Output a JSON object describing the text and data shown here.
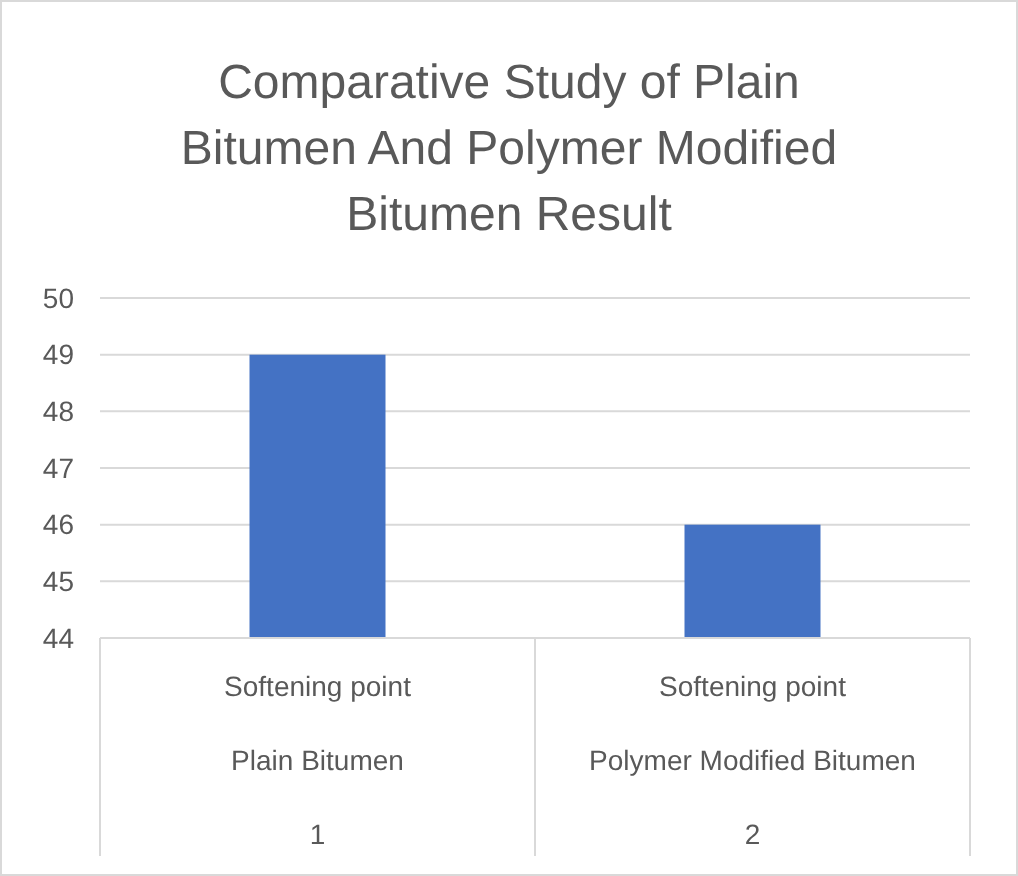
{
  "chart_data": {
    "type": "bar",
    "title": "Comparative Study of Plain Bitumen And Polymer Modified Bitumen Result",
    "categories": [
      "Softening point\nPlain Bitumen\n1",
      "Softening point\nPolymer Modified Bitumen\n2"
    ],
    "values": [
      49,
      46
    ],
    "color": "#4472c4",
    "ylim": [
      44,
      50
    ],
    "yticks": [
      44,
      45,
      46,
      47,
      48,
      49,
      50
    ],
    "grid": "y"
  }
}
